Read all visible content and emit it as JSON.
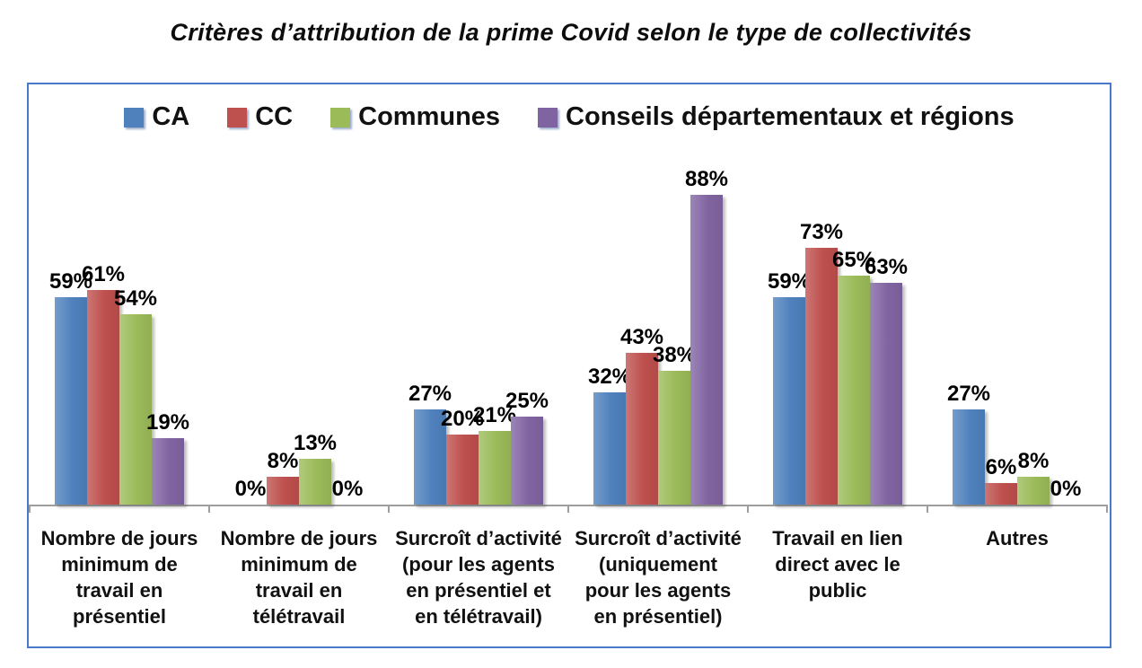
{
  "page_title": "Critères d’attribution de la prime Covid selon le type de collectivités",
  "colors": {
    "frame_border": "#4a79c9",
    "axis_gray": "#9e9e9e",
    "text_black": "#0d0d0d",
    "bar_blue": "#4F81BD",
    "bar_red": "#BE504D",
    "bar_green": "#9BBB59",
    "bar_purple": "#8064A2"
  },
  "chart_data": {
    "type": "bar",
    "title": "Critères d’attribution de la prime Covid selon le type de collectivités",
    "xlabel": "",
    "ylabel": "",
    "ylim": [
      0,
      100
    ],
    "grid": false,
    "legend_position": "top",
    "value_labels": true,
    "value_suffix": "%",
    "categories": [
      "Nombre de jours minimum de travail en présentiel",
      "Nombre de jours minimum de travail en télétravail",
      "Surcroît d’activité (pour les agents en présentiel et en télétravail)",
      "Surcroît d’activité (uniquement pour les agents en présentiel)",
      "Travail en lien direct avec le public",
      "Autres"
    ],
    "categories_wrapped": [
      [
        "Nombre de jours",
        "minimum de",
        "travail en",
        "présentiel"
      ],
      [
        "Nombre de jours",
        "minimum de",
        "travail en",
        "télétravail"
      ],
      [
        "Surcroît d’activité",
        "(pour les agents",
        "en présentiel et",
        "en télétravail)"
      ],
      [
        "Surcroît d’activité",
        "(uniquement",
        "pour les agents",
        "en présentiel)"
      ],
      [
        "Travail en lien",
        "direct avec le",
        "public"
      ],
      [
        "Autres"
      ]
    ],
    "series": [
      {
        "name": "CA",
        "color": "#4F81BD",
        "values": [
          59,
          0,
          27,
          32,
          59,
          27
        ]
      },
      {
        "name": "CC",
        "color": "#BE504D",
        "values": [
          61,
          8,
          20,
          43,
          73,
          6
        ]
      },
      {
        "name": "Communes",
        "color": "#9BBB59",
        "values": [
          54,
          13,
          21,
          38,
          65,
          8
        ]
      },
      {
        "name": "Conseils départementaux et régions",
        "color": "#8064A2",
        "values": [
          19,
          0,
          25,
          88,
          63,
          0
        ]
      }
    ]
  }
}
